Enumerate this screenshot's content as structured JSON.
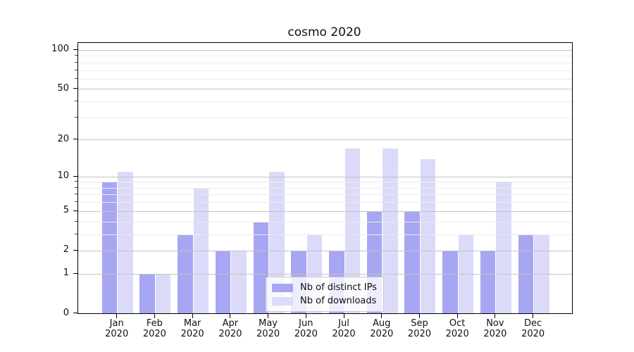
{
  "chart": {
    "title": "cosmo 2020",
    "colors": {
      "distinct_ips": "#a6a6f2",
      "downloads": "#dbdbf9",
      "grid_major": "#c3c3c3",
      "grid_minor": "#ebebeb",
      "axis": "#000000",
      "legend_border": "#cccccc"
    },
    "legend": {
      "items": [
        {
          "label": "Nb of distinct IPs",
          "series_key": "distinct_ips"
        },
        {
          "label": "Nb of downloads",
          "series_key": "downloads"
        }
      ]
    }
  },
  "chart_data": {
    "type": "bar",
    "title": "cosmo 2020",
    "categories": [
      "Jan 2020",
      "Feb 2020",
      "Mar 2020",
      "Apr 2020",
      "May 2020",
      "Jun 2020",
      "Jul 2020",
      "Aug 2020",
      "Sep 2020",
      "Oct 2020",
      "Nov 2020",
      "Dec 2020"
    ],
    "series": [
      {
        "name": "Nb of distinct IPs",
        "values": [
          9,
          1,
          3,
          2,
          4,
          2,
          2,
          5,
          5,
          2,
          2,
          3
        ]
      },
      {
        "name": "Nb of downloads",
        "values": [
          11,
          1,
          8,
          2,
          11,
          3,
          17,
          17,
          14,
          3,
          9,
          3
        ]
      }
    ],
    "xlabel": "",
    "ylabel": "",
    "yscale": "log-like (log10(1+v))",
    "yticks": [
      0,
      1,
      2,
      5,
      10,
      20,
      50,
      100
    ],
    "yticks_minor": [
      3,
      4,
      6,
      7,
      8,
      9,
      30,
      40,
      60,
      70,
      80,
      90
    ],
    "ylim": [
      0,
      115
    ],
    "grid": true,
    "legend_position": "lower center"
  }
}
